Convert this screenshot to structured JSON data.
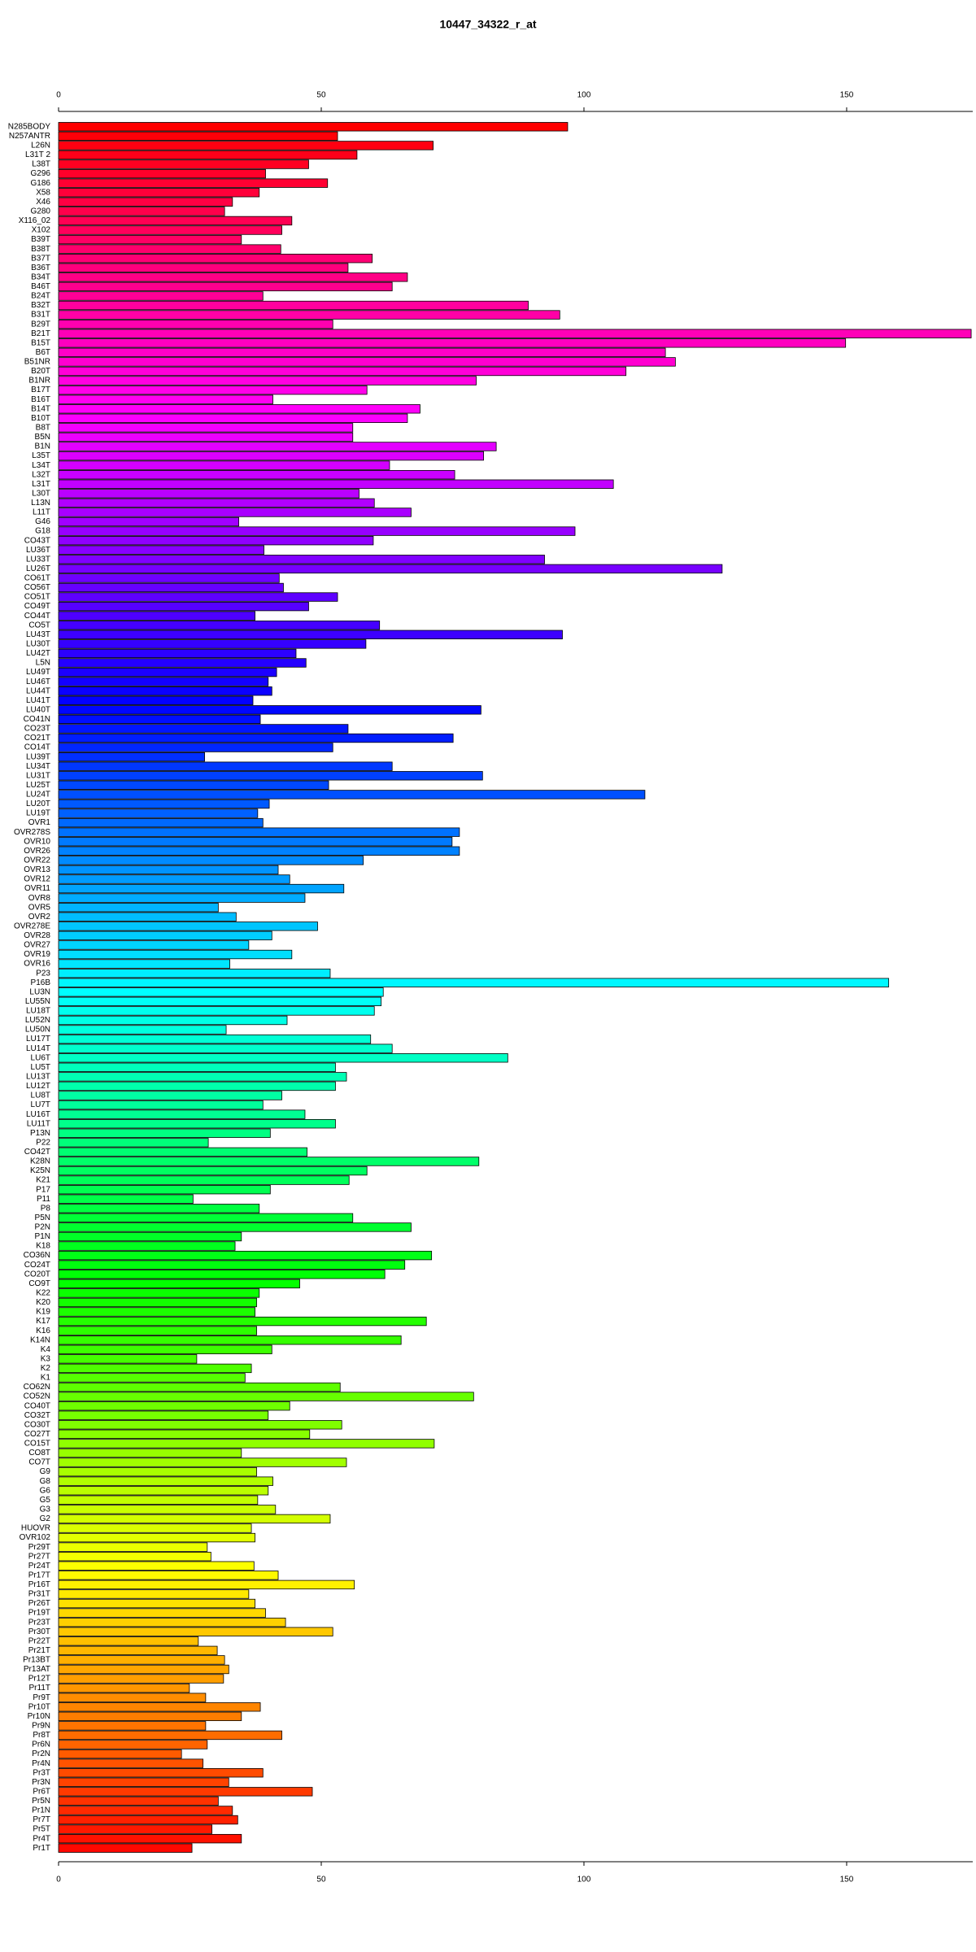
{
  "chart_data": {
    "type": "barh",
    "title": "10447_34322_r_at",
    "palette": "rainbow",
    "bar_outline": "#000000",
    "categories": [
      "N285BODY",
      "N257ANTR",
      "L26N",
      "L31T 2",
      "L38T",
      "G296",
      "G186",
      "X58",
      "X46",
      "G280",
      "X116_02",
      "X102",
      "B39T",
      "B38T",
      "B37T",
      "B36T",
      "B34T",
      "B46T",
      "B24T",
      "B32T",
      "B31T",
      "B29T",
      "B21T",
      "B15T",
      "B6T",
      "B51NR",
      "B20T",
      "B1NR",
      "B17T",
      "B16T",
      "B14T",
      "B10T",
      "B8T",
      "B5N",
      "B1N",
      "L35T",
      "L34T",
      "L32T",
      "L31T",
      "L30T",
      "L13N",
      "L11T",
      "G46",
      "G18",
      "CO43T",
      "LU36T",
      "LU33T",
      "LU26T",
      "CO61T",
      "CO56T",
      "CO51T",
      "CO49T",
      "CO44T",
      "CO5T",
      "LU43T",
      "LU30T",
      "LU42T",
      "L5N",
      "LU49T",
      "LU46T",
      "LU44T",
      "LU41T",
      "LU40T",
      "CO41N",
      "CO23T",
      "CO21T",
      "CO14T",
      "LU39T",
      "LU34T",
      "LU31T",
      "LU25T",
      "LU24T",
      "LU20T",
      "LU19T",
      "OVR1",
      "OVR278S",
      "OVR10",
      "OVR26",
      "OVR22",
      "OVR13",
      "OVR12",
      "OVR11",
      "OVR8",
      "OVR5",
      "OVR2",
      "OVR278E",
      "OVR28",
      "OVR27",
      "OVR19",
      "OVR16",
      "P23",
      "P16B",
      "LU3N",
      "LU55N",
      "LU18T",
      "LU52N",
      "LU50N",
      "LU17T",
      "LU14T",
      "LU6T",
      "LU5T",
      "LU13T",
      "LU12T",
      "LU8T",
      "LU7T",
      "LU16T",
      "LU11T",
      "P13N",
      "P22",
      "CO42T",
      "K28N",
      "K25N",
      "K21",
      "P17",
      "P11",
      "P8",
      "P5N",
      "P2N",
      "P1N",
      "K18",
      "CO36N",
      "CO24T",
      "CO20T",
      "CO9T",
      "K22",
      "K20",
      "K19",
      "K17",
      "K16",
      "K14N",
      "K4",
      "K3",
      "K2",
      "K1",
      "CO62N",
      "CO52N",
      "CO40T",
      "CO32T",
      "CO30T",
      "CO27T",
      "CO15T",
      "CO8T",
      "CO7T",
      "G9",
      "G8",
      "G6",
      "G5",
      "G3",
      "G2",
      "HUOVR",
      "OVR102",
      "Pr29T",
      "Pr27T",
      "Pr24T",
      "Pr17T",
      "Pr16T",
      "Pr31T",
      "Pr26T",
      "Pr19T",
      "Pr23T",
      "Pr30T",
      "Pr22T",
      "Pr21T",
      "Pr13BT",
      "Pr13AT",
      "Pr12T",
      "Pr11T",
      "Pr9T",
      "Pr10T",
      "Pr10N",
      "Pr9N",
      "Pr8T",
      "Pr6N",
      "Pr2N",
      "Pr4N",
      "Pr3T",
      "Pr3N",
      "Pr6T",
      "Pr5N",
      "Pr1N",
      "Pr7T",
      "Pr5T",
      "Pr4T",
      "Pr1T"
    ],
    "values": [
      96.9,
      53.1,
      71.3,
      56.8,
      47.6,
      39.4,
      51.2,
      38.2,
      33.1,
      31.6,
      44.4,
      42.5,
      34.8,
      42.3,
      59.7,
      55.1,
      66.4,
      63.5,
      38.9,
      89.4,
      95.4,
      52.2,
      173.7,
      149.8,
      115.5,
      117.4,
      108,
      79.5,
      58.7,
      40.8,
      68.8,
      66.4,
      56,
      56,
      83.3,
      80.9,
      63,
      75.4,
      105.6,
      57.2,
      60.1,
      67.1,
      34.3,
      98.3,
      59.9,
      39.1,
      92.5,
      126.3,
      42,
      42.8,
      53.1,
      47.6,
      37.4,
      61.1,
      95.9,
      58.5,
      45.2,
      47.1,
      41.5,
      39.9,
      40.6,
      37,
      80.4,
      38.4,
      55.1,
      75.1,
      52.2,
      27.8,
      63.5,
      80.7,
      51.4,
      111.6,
      40.1,
      37.9,
      38.9,
      76.3,
      74.9,
      76.3,
      58,
      41.8,
      44,
      54.3,
      46.9,
      30.4,
      33.8,
      49.3,
      40.6,
      36.2,
      44.4,
      32.6,
      51.7,
      158,
      61.8,
      61.4,
      60.1,
      43.5,
      31.9,
      59.4,
      63.5,
      85.5,
      52.7,
      54.8,
      52.7,
      42.5,
      38.9,
      46.9,
      52.7,
      40.3,
      28.5,
      47.3,
      80,
      58.7,
      55.3,
      40.3,
      25.6,
      38.2,
      56,
      67.1,
      34.8,
      33.6,
      71,
      65.9,
      62.1,
      45.9,
      38.2,
      37.7,
      37.4,
      70,
      37.7,
      65.2,
      40.6,
      26.3,
      36.7,
      35.5,
      53.6,
      79,
      44,
      39.9,
      53.9,
      47.8,
      71.5,
      34.8,
      54.8,
      37.7,
      40.8,
      39.9,
      37.9,
      41.3,
      51.7,
      36.7,
      37.4,
      28.3,
      29,
      37.2,
      41.8,
      56.3,
      36.2,
      37.4,
      39.4,
      43.2,
      52.2,
      26.6,
      30.2,
      31.6,
      32.4,
      31.4,
      24.9,
      28,
      38.4,
      34.8,
      28,
      42.5,
      28.3,
      23.4,
      27.5,
      38.9,
      32.4,
      48.3,
      30.4,
      33.1,
      34.1,
      29.2,
      34.8,
      25.4
    ],
    "xlim": [
      0,
      174
    ],
    "xticks": [
      0,
      50,
      100,
      150
    ]
  }
}
